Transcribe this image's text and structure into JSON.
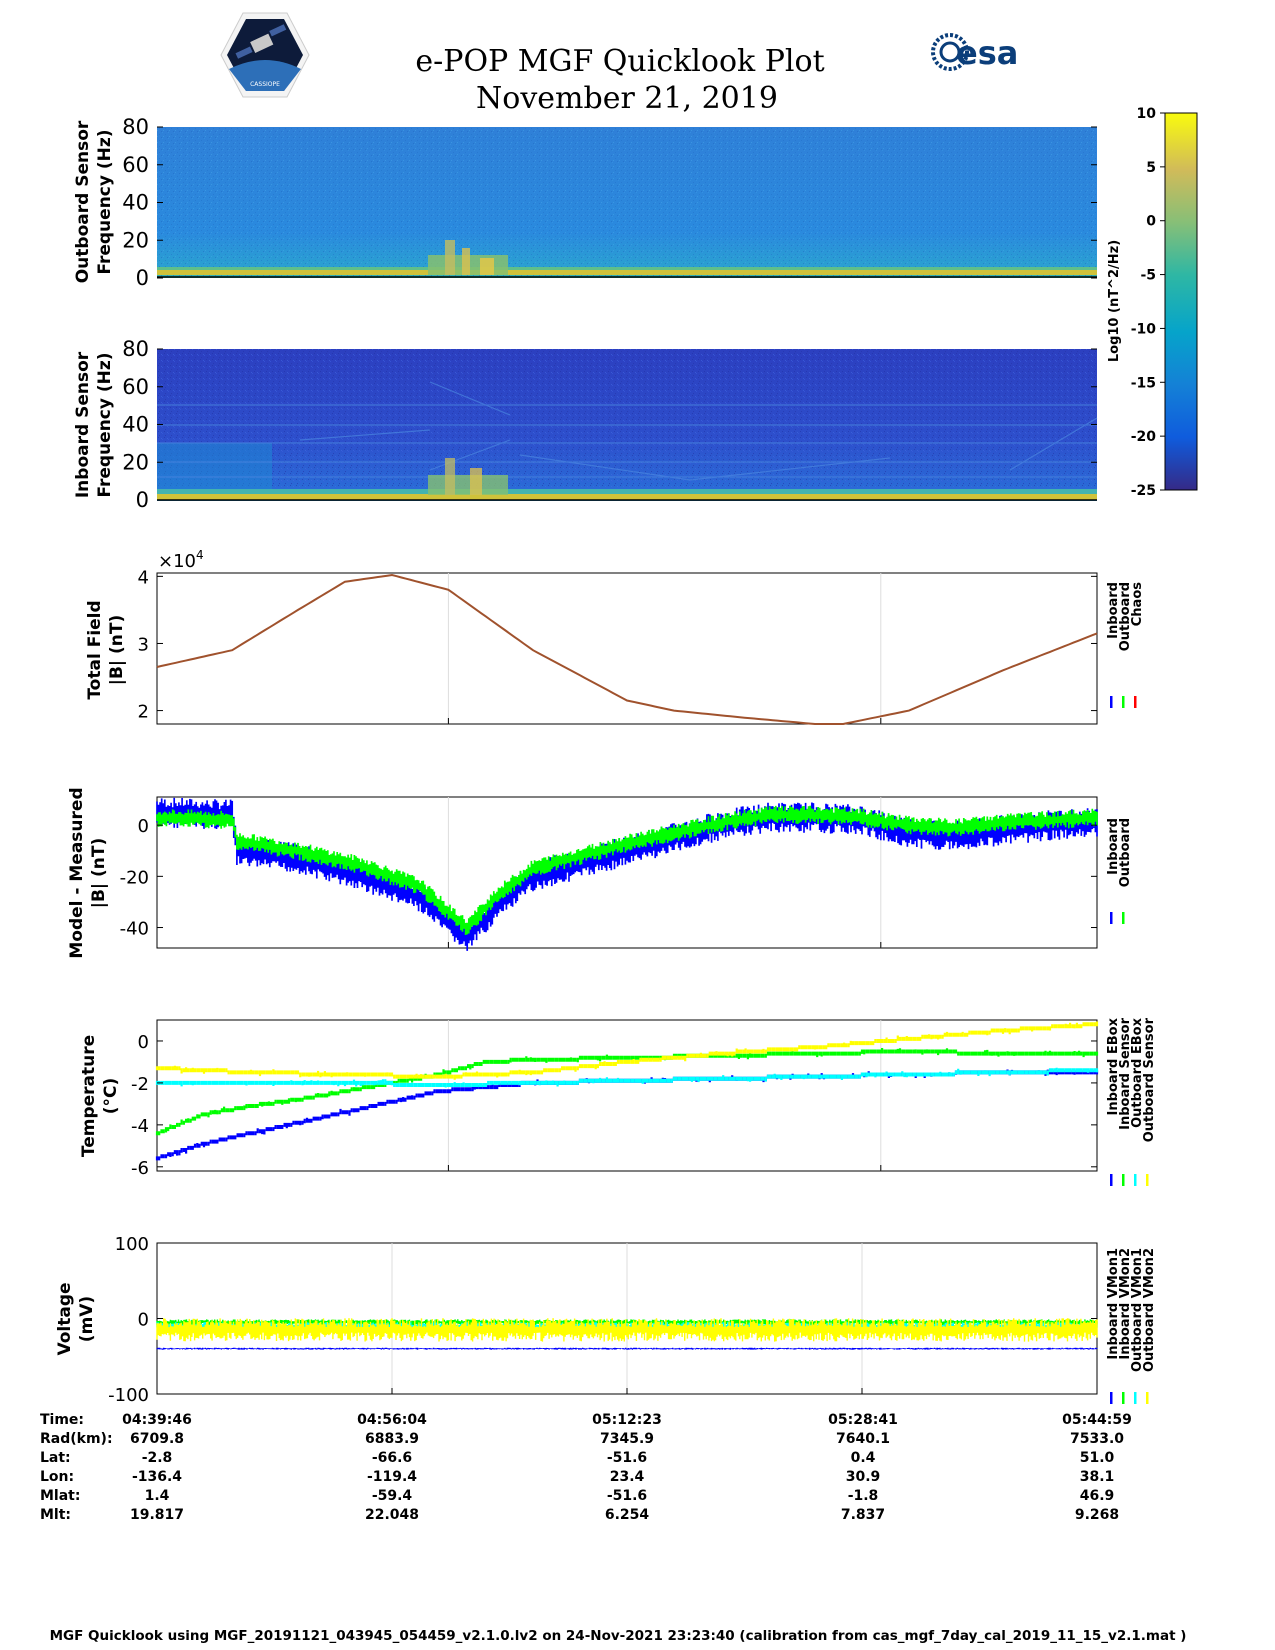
{
  "header": {
    "title": "e-POP MGF Quicklook Plot",
    "date": "November 21, 2019",
    "logo_left": "CASSIOPE",
    "logo_right": "esa"
  },
  "colorbar": {
    "label": "Log10 (nT^2/Hz)",
    "ticks": [
      "10",
      "5",
      "0",
      "-5",
      "-10",
      "-15",
      "-20",
      "-25"
    ]
  },
  "chart_data": [
    {
      "type": "heatmap",
      "name": "outboard-spectrogram",
      "ylabel_1": "Outboard Sensor",
      "ylabel_2": "Frequency (Hz)",
      "yticks": [
        "0",
        "20",
        "40",
        "60",
        "80"
      ],
      "ylim": [
        0,
        80
      ],
      "clim": [
        -25,
        10
      ]
    },
    {
      "type": "heatmap",
      "name": "inboard-spectrogram",
      "ylabel_1": "Inboard Sensor",
      "ylabel_2": "Frequency (Hz)",
      "yticks": [
        "0",
        "20",
        "40",
        "60",
        "80"
      ],
      "ylim": [
        0,
        80
      ],
      "clim": [
        -25,
        10
      ]
    },
    {
      "type": "line",
      "name": "total-field",
      "ylabel_1": "Total Field",
      "ylabel_2": "|B| (nT)",
      "exponent": "×10",
      "exponent_power": "4",
      "yticks": [
        "2",
        "3",
        "4"
      ],
      "ylim": [
        1.8,
        4.05
      ],
      "legend": [
        "Inboard",
        "Outboard",
        "Chaos"
      ],
      "legend_colors": [
        "#0000ff",
        "#00ff00",
        "#ff0000"
      ],
      "line_color": "#a0522d",
      "x": [
        0,
        0.08,
        0.15,
        0.2,
        0.25,
        0.31,
        0.4,
        0.5,
        0.55,
        0.62,
        0.7,
        0.73,
        0.8,
        0.9,
        1
      ],
      "y": [
        2.65,
        2.9,
        3.5,
        3.92,
        4.02,
        3.8,
        2.9,
        2.15,
        2.0,
        1.9,
        1.8,
        1.8,
        2.0,
        2.6,
        3.15
      ]
    },
    {
      "type": "line",
      "name": "model-minus-measured",
      "ylabel_1": "Model - Measured",
      "ylabel_2": "|B| (nT)",
      "yticks": [
        "-40",
        "-20",
        "0"
      ],
      "ylim": [
        -48,
        11
      ],
      "legend": [
        "Inboard",
        "Outboard"
      ],
      "legend_colors": [
        "#0000ff",
        "#00ff00"
      ],
      "series": [
        {
          "name": "Inboard",
          "color": "#0000ff",
          "x": [
            0,
            0.08,
            0.085,
            0.15,
            0.22,
            0.28,
            0.31,
            0.33,
            0.36,
            0.4,
            0.5,
            0.6,
            0.65,
            0.7,
            0.75,
            0.8,
            0.85,
            0.9,
            0.95,
            1
          ],
          "y": [
            5,
            4,
            -10,
            -13,
            -20,
            -28,
            -38,
            -44,
            -32,
            -20,
            -10,
            0,
            3,
            3,
            2,
            -3,
            -4,
            -2,
            0,
            1
          ],
          "spread": 5
        },
        {
          "name": "Outboard",
          "color": "#00ff00",
          "x": [
            0,
            0.08,
            0.085,
            0.15,
            0.22,
            0.28,
            0.31,
            0.33,
            0.36,
            0.4,
            0.5,
            0.6,
            0.65,
            0.7,
            0.75,
            0.8,
            0.85,
            0.9,
            0.95,
            1
          ],
          "y": [
            3,
            2,
            -6,
            -10,
            -16,
            -24,
            -34,
            -40,
            -28,
            -17,
            -7,
            1,
            4,
            4,
            3,
            0,
            -1,
            1,
            2,
            3
          ],
          "spread": 3
        }
      ]
    },
    {
      "type": "scatter",
      "name": "temperature",
      "ylabel_1": "Temperature",
      "ylabel_2": "(°C)",
      "yticks": [
        "-6",
        "-4",
        "-2",
        "0"
      ],
      "ylim": [
        -6.2,
        1.0
      ],
      "legend": [
        "Inboard EBox",
        "Inboard Sensor",
        "Outboard EBox",
        "Outboard Sensor"
      ],
      "legend_colors": [
        "#0000ff",
        "#00ff00",
        "#00ffff",
        "#ffff00"
      ],
      "series": [
        {
          "name": "Inboard EBox",
          "color": "#0000ff",
          "x": [
            0,
            0.05,
            0.1,
            0.15,
            0.2,
            0.25,
            0.3,
            0.35,
            0.4,
            0.5,
            0.6,
            0.7,
            0.8,
            0.9,
            1
          ],
          "y": [
            -5.6,
            -4.9,
            -4.4,
            -3.9,
            -3.4,
            -2.9,
            -2.4,
            -2.2,
            -2.0,
            -1.9,
            -1.8,
            -1.7,
            -1.6,
            -1.5,
            -1.5
          ]
        },
        {
          "name": "Inboard Sensor",
          "color": "#00ff00",
          "x": [
            0,
            0.05,
            0.1,
            0.15,
            0.2,
            0.25,
            0.3,
            0.35,
            0.4,
            0.5,
            0.6,
            0.7,
            0.8,
            0.9,
            1
          ],
          "y": [
            -4.4,
            -3.5,
            -3.1,
            -2.8,
            -2.4,
            -2.0,
            -1.6,
            -1.0,
            -0.9,
            -0.8,
            -0.7,
            -0.6,
            -0.5,
            -0.6,
            -0.6
          ]
        },
        {
          "name": "Outboard EBox",
          "color": "#00ffff",
          "x": [
            0,
            0.1,
            0.2,
            0.3,
            0.4,
            0.5,
            0.6,
            0.7,
            0.8,
            0.9,
            1
          ],
          "y": [
            -2.0,
            -2.0,
            -2.0,
            -2.1,
            -2.0,
            -1.9,
            -1.8,
            -1.7,
            -1.6,
            -1.5,
            -1.4
          ]
        },
        {
          "name": "Outboard Sensor",
          "color": "#ffff00",
          "x": [
            0,
            0.1,
            0.2,
            0.3,
            0.4,
            0.5,
            0.6,
            0.7,
            0.8,
            0.9,
            1
          ],
          "y": [
            -1.3,
            -1.5,
            -1.6,
            -1.7,
            -1.5,
            -1.0,
            -0.6,
            -0.3,
            0.1,
            0.5,
            0.8
          ]
        }
      ]
    },
    {
      "type": "scatter",
      "name": "voltage",
      "ylabel_1": "Voltage",
      "ylabel_2": "(mV)",
      "yticks": [
        "-100",
        "0",
        "100"
      ],
      "ylim": [
        -100,
        100
      ],
      "legend": [
        "Inboard VMon1",
        "Inboard VMon2",
        "Outboard VMon1",
        "Outboard VMon2"
      ],
      "legend_colors": [
        "#0000ff",
        "#00ff00",
        "#00ffff",
        "#ffff00"
      ],
      "series": [
        {
          "name": "Inboard VMon1",
          "color": "#0000ff",
          "level": -40,
          "spread": 1
        },
        {
          "name": "Inboard VMon2",
          "color": "#00ff00",
          "level": -5,
          "spread": 3
        },
        {
          "name": "Outboard VMon1",
          "color": "#00ffff",
          "level": -10,
          "spread": 4
        },
        {
          "name": "Outboard VMon2",
          "color": "#ffff00",
          "level": -15,
          "spread": 12
        }
      ]
    }
  ],
  "orbit_table": {
    "labels": [
      "Time:",
      "Rad(km):",
      "Lat:",
      "Lon:",
      "Mlat:",
      "Mlt:"
    ],
    "columns": [
      [
        "04:39:46",
        "6709.8",
        "-2.8",
        "-136.4",
        "1.4",
        "19.817"
      ],
      [
        "04:56:04",
        "6883.9",
        "-66.6",
        "-119.4",
        "-59.4",
        "22.048"
      ],
      [
        "05:12:23",
        "7345.9",
        "-51.6",
        "23.4",
        "-51.6",
        "6.254"
      ],
      [
        "05:28:41",
        "7640.1",
        "0.4",
        "30.9",
        "-1.8",
        "7.837"
      ],
      [
        "05:44:59",
        "7533.0",
        "51.0",
        "38.1",
        "46.9",
        "9.268"
      ]
    ]
  },
  "footer": "MGF Quicklook using MGF_20191121_043945_054459_v2.1.0.lv2 on 24-Nov-2021 23:23:40 (calibration from cas_mgf_7day_cal_2019_11_15_v2.1.mat )"
}
